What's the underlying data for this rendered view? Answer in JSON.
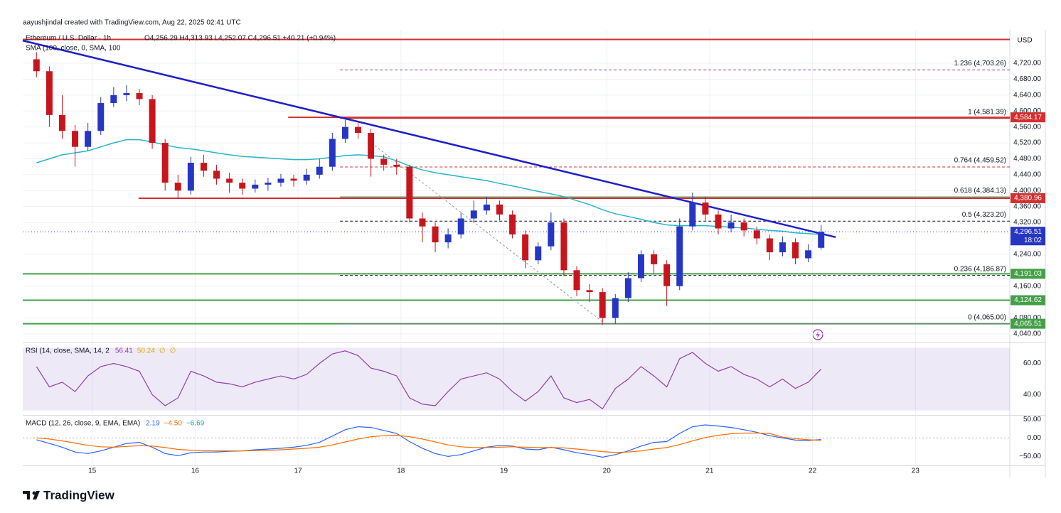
{
  "header": {
    "attribution": "aayushjindal created with TradingView.com, Aug 22, 2025 02:41 UTC",
    "currency": "USD",
    "brand": "TradingView"
  },
  "chart_data": [
    {
      "type": "candlestick",
      "symbol": "Ethereum / U.S. Dollar · 1h",
      "ohlc_legend": "O4,256.29 H4,313.93 L4,252.07 C4,296.51 +40.21 (+0.94%)",
      "sma_legend": "SMA (100, close, 0, SMA, 100",
      "x": [
        11,
        14,
        17,
        20,
        23,
        26,
        29,
        32,
        35,
        38,
        41,
        44,
        47,
        50,
        53,
        56,
        59,
        62,
        65,
        68,
        71,
        74,
        77,
        80,
        83,
        86,
        89,
        92,
        95,
        98,
        101,
        104,
        107,
        110,
        113,
        116,
        119,
        122,
        125,
        128,
        131,
        134,
        137,
        140,
        143,
        146,
        149,
        152,
        155,
        158,
        161,
        164,
        167,
        170,
        173,
        176,
        179,
        182,
        185,
        188,
        191,
        194
      ],
      "open": [
        4730,
        4700,
        4590,
        4550,
        4510,
        4550,
        4620,
        4640,
        4645,
        4630,
        4520,
        4420,
        4400,
        4470,
        4450,
        4430,
        4420,
        4405,
        4415,
        4420,
        4430,
        4425,
        4440,
        4460,
        4530,
        4560,
        4545,
        4480,
        4465,
        4460,
        4330,
        4310,
        4270,
        4290,
        4330,
        4350,
        4365,
        4340,
        4290,
        4225,
        4260,
        4320,
        4200,
        4150,
        4145,
        4080,
        4130,
        4180,
        4240,
        4215,
        4160,
        4310,
        4370,
        4340,
        4305,
        4320,
        4300,
        4280,
        4245,
        4270,
        4230,
        4256.29
      ],
      "high": [
        4748,
        4712,
        4640,
        4565,
        4570,
        4635,
        4660,
        4665,
        4655,
        4640,
        4530,
        4440,
        4485,
        4490,
        4465,
        4445,
        4430,
        4428,
        4432,
        4442,
        4440,
        4455,
        4480,
        4545,
        4578,
        4570,
        4555,
        4490,
        4480,
        4465,
        4345,
        4320,
        4305,
        4345,
        4375,
        4385,
        4375,
        4350,
        4300,
        4270,
        4345,
        4330,
        4210,
        4165,
        4155,
        4140,
        4195,
        4250,
        4250,
        4225,
        4330,
        4395,
        4385,
        4350,
        4340,
        4330,
        4310,
        4290,
        4285,
        4280,
        4265,
        4313.93
      ],
      "low": [
        4685,
        4560,
        4530,
        4460,
        4500,
        4540,
        4610,
        4625,
        4615,
        4505,
        4400,
        4380,
        4390,
        4435,
        4415,
        4395,
        4390,
        4395,
        4400,
        4410,
        4410,
        4415,
        4430,
        4450,
        4520,
        4530,
        4435,
        4450,
        4440,
        4320,
        4270,
        4245,
        4255,
        4280,
        4320,
        4340,
        4325,
        4280,
        4205,
        4215,
        4250,
        4185,
        4135,
        4120,
        4063,
        4065,
        4120,
        4170,
        4190,
        4110,
        4150,
        4300,
        4325,
        4290,
        4295,
        4285,
        4265,
        4225,
        4235,
        4215,
        4220,
        4252.07
      ],
      "close": [
        4700,
        4590,
        4550,
        4510,
        4550,
        4620,
        4640,
        4645,
        4630,
        4520,
        4420,
        4400,
        4470,
        4450,
        4430,
        4420,
        4405,
        4415,
        4420,
        4430,
        4425,
        4440,
        4460,
        4530,
        4560,
        4545,
        4480,
        4465,
        4460,
        4330,
        4310,
        4270,
        4290,
        4330,
        4350,
        4365,
        4340,
        4290,
        4225,
        4260,
        4320,
        4200,
        4150,
        4145,
        4080,
        4130,
        4180,
        4240,
        4215,
        4160,
        4310,
        4370,
        4340,
        4305,
        4320,
        4300,
        4280,
        4245,
        4270,
        4230,
        4250,
        4296.51
      ],
      "up_color": "#2636c4",
      "down_color": "#c8151d",
      "sma": {
        "color": "#26b5c9",
        "values": [
          4470,
          4480,
          4490,
          4495,
          4500,
          4510,
          4520,
          4528,
          4528,
          4522,
          4515,
          4508,
          4505,
          4500,
          4495,
          4490,
          4486,
          4484,
          4482,
          4480,
          4478,
          4478,
          4480,
          4484,
          4488,
          4490,
          4488,
          4485,
          4475,
          4462,
          4452,
          4445,
          4440,
          4435,
          4430,
          4425,
          4418,
          4412,
          4405,
          4398,
          4392,
          4385,
          4375,
          4365,
          4352,
          4342,
          4335,
          4328,
          4320,
          4314,
          4312,
          4312,
          4312,
          4310,
          4308,
          4306,
          4303,
          4300,
          4298,
          4294,
          4292,
          4290
        ]
      },
      "xlim": [
        7.8,
        238
      ],
      "ylim": [
        4022,
        4804
      ],
      "xticks": [
        {
          "value": 24,
          "label": "15"
        },
        {
          "value": 48,
          "label": "16"
        },
        {
          "value": 72,
          "label": "17"
        },
        {
          "value": 96,
          "label": "18"
        },
        {
          "value": 120,
          "label": "19"
        },
        {
          "value": 144,
          "label": "20"
        },
        {
          "value": 168,
          "label": "21"
        },
        {
          "value": 192,
          "label": "22"
        },
        {
          "value": 216,
          "label": "23"
        }
      ],
      "yticks": [
        {
          "value": 4040,
          "label": "4,040.00"
        },
        {
          "value": 4080,
          "label": "4,080.00"
        },
        {
          "value": 4160,
          "label": "4,160.00"
        },
        {
          "value": 4240,
          "label": "4,240.00"
        },
        {
          "value": 4320,
          "label": "4,320.00"
        },
        {
          "value": 4360,
          "label": "4,360.00"
        },
        {
          "value": 4400,
          "label": "4,400.00"
        },
        {
          "value": 4440,
          "label": "4,440.00"
        },
        {
          "value": 4480,
          "label": "4,480.00"
        },
        {
          "value": 4520,
          "label": "4,520.00"
        },
        {
          "value": 4560,
          "label": "4,560.00"
        },
        {
          "value": 4600,
          "label": "4,600.00"
        },
        {
          "value": 4640,
          "label": "4,640.00"
        },
        {
          "value": 4680,
          "label": "4,680.00"
        },
        {
          "value": 4720,
          "label": "4,720.00"
        }
      ],
      "grid": true,
      "levels": [
        {
          "value": 4780,
          "color": "#d32f2f",
          "from": 7.8
        },
        {
          "value": 4584.17,
          "label": "4,584.17",
          "color": "#d32f2f",
          "from": 69.7
        },
        {
          "value": 4380.96,
          "label": "4,380.96",
          "color": "#d32f2f",
          "from": 34.8
        },
        {
          "value": 4191.03,
          "label": "4,191.03",
          "color": "#43a047",
          "from": 7.8
        },
        {
          "value": 4124.62,
          "label": "4,124.62",
          "color": "#43a047",
          "from": 7.8
        },
        {
          "value": 4065.51,
          "label": "4,065.51",
          "color": "#43a047",
          "from": 7.8
        }
      ],
      "trendline": {
        "color": "#1f1fc8",
        "x": [
          7.8,
          197.4
        ],
        "values": [
          4777,
          4283
        ]
      },
      "fib": {
        "from": 81.8,
        "levels": [
          {
            "value": 4703.26,
            "label": "1.236 (4,703.26)"
          },
          {
            "value": 4581.39,
            "label": "1 (4,581.39)"
          },
          {
            "value": 4459.52,
            "label": "0.764 (4,459.52)"
          },
          {
            "value": 4384.13,
            "label": "0.618 (4,384.13)"
          },
          {
            "value": 4323.2,
            "label": "0.5 (4,323.20)"
          },
          {
            "value": 4186.87,
            "label": "0.236 (4,186.87)"
          },
          {
            "value": 4065,
            "label": "0 (4,065.00)"
          }
        ],
        "colors": [
          "#9c27b0",
          "#b71c1c",
          "#d32f2f",
          "#2e7d32",
          "#131722",
          "#131722",
          "#787b86"
        ],
        "dashed": [
          true,
          false,
          true,
          false,
          true,
          true,
          false
        ],
        "diagonal": {
          "color": "#9598a1",
          "x": [
            89.9,
            143.4
          ],
          "values": [
            4513,
            4067
          ]
        }
      },
      "last_price": {
        "value": 4296.51,
        "label": "4,296.51",
        "countdown": "18:02",
        "color": "#2636c4"
      }
    },
    {
      "type": "line",
      "title": "RSI (14, close, SMA, 14, 2",
      "legend_values": [
        "56.41",
        "50.24",
        "∅",
        "∅"
      ],
      "series": [
        {
          "color": "#8e3fb0",
          "values": [
            58,
            45,
            48,
            42,
            52,
            58,
            60,
            58,
            55,
            40,
            33,
            38,
            55,
            52,
            48,
            47,
            45,
            48,
            50,
            52,
            50,
            53,
            60,
            66,
            68,
            65,
            57,
            55,
            52,
            38,
            34,
            33,
            42,
            50,
            52,
            54,
            50,
            42,
            36,
            42,
            52,
            38,
            35,
            37,
            31,
            44,
            50,
            58,
            52,
            45,
            63,
            67,
            60,
            55,
            58,
            53,
            50,
            45,
            50,
            44,
            48,
            56.41
          ]
        }
      ],
      "band": [
        30,
        70
      ],
      "band_color": "#7e57c2",
      "ylim": [
        28,
        72
      ],
      "yticks": [
        {
          "value": 60,
          "label": "60.00"
        },
        {
          "value": 40,
          "label": "40.00"
        }
      ]
    },
    {
      "type": "line",
      "title": "MACD (12, 26, close, 9, EMA, EMA)",
      "legend_values": [
        "2.19",
        "−4.50",
        "−6.69"
      ],
      "series": [
        {
          "color": "#2962ff",
          "values": [
            -5,
            -15,
            -25,
            -38,
            -42,
            -35,
            -25,
            -15,
            -12,
            -25,
            -42,
            -48,
            -40,
            -38,
            -38,
            -36,
            -35,
            -32,
            -30,
            -28,
            -25,
            -20,
            -12,
            5,
            22,
            30,
            28,
            20,
            12,
            -10,
            -28,
            -42,
            -50,
            -45,
            -35,
            -25,
            -20,
            -22,
            -30,
            -32,
            -25,
            -32,
            -40,
            -45,
            -52,
            -45,
            -35,
            -22,
            -12,
            -10,
            12,
            30,
            35,
            32,
            28,
            22,
            15,
            6,
            0,
            -6,
            -7,
            -4.5
          ]
        },
        {
          "color": "#ff6d00",
          "values": [
            0,
            -3,
            -8,
            -14,
            -20,
            -24,
            -25,
            -23,
            -21,
            -22,
            -26,
            -31,
            -33,
            -34,
            -35,
            -35,
            -35,
            -34,
            -33,
            -32,
            -30,
            -28,
            -25,
            -19,
            -11,
            -3,
            3,
            6,
            7,
            3,
            -3,
            -11,
            -19,
            -24,
            -26,
            -26,
            -25,
            -24,
            -25,
            -26,
            -26,
            -27,
            -30,
            -33,
            -37,
            -39,
            -38,
            -35,
            -30,
            -26,
            -18,
            -8,
            1,
            7,
            11,
            13,
            13,
            12,
            2,
            -2,
            -5,
            -6.69
          ]
        }
      ],
      "ylim": [
        -74,
        56
      ],
      "yticks": [
        {
          "value": 50,
          "label": "50.00"
        },
        {
          "value": 0,
          "label": "0.00"
        },
        {
          "value": -50,
          "label": "−50.00"
        }
      ]
    }
  ]
}
